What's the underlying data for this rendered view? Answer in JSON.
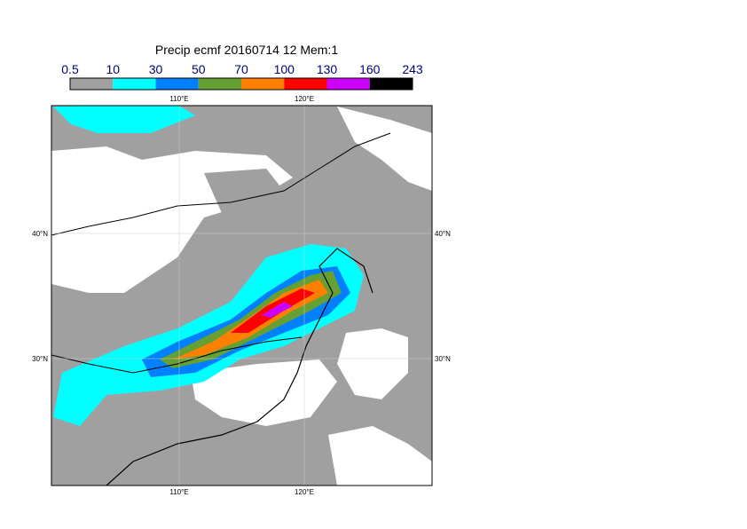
{
  "title": "Precip ecmf 20160714 12 Mem:1",
  "colorbar": {
    "bounds": [
      0.5,
      10,
      30,
      50,
      70,
      100,
      130,
      160,
      243
    ],
    "colors": [
      "#a0a0a0",
      "#00ffff",
      "#0080ff",
      "#66a033",
      "#ff8000",
      "#ff0000",
      "#cc00ff",
      "#000000"
    ]
  },
  "axes": {
    "top": [
      "110°E",
      "120°E"
    ],
    "bottom": [
      "110°E",
      "120°E"
    ],
    "left": [
      "40°N",
      "30°N"
    ],
    "right": [
      "40°N",
      "30°N"
    ]
  }
}
